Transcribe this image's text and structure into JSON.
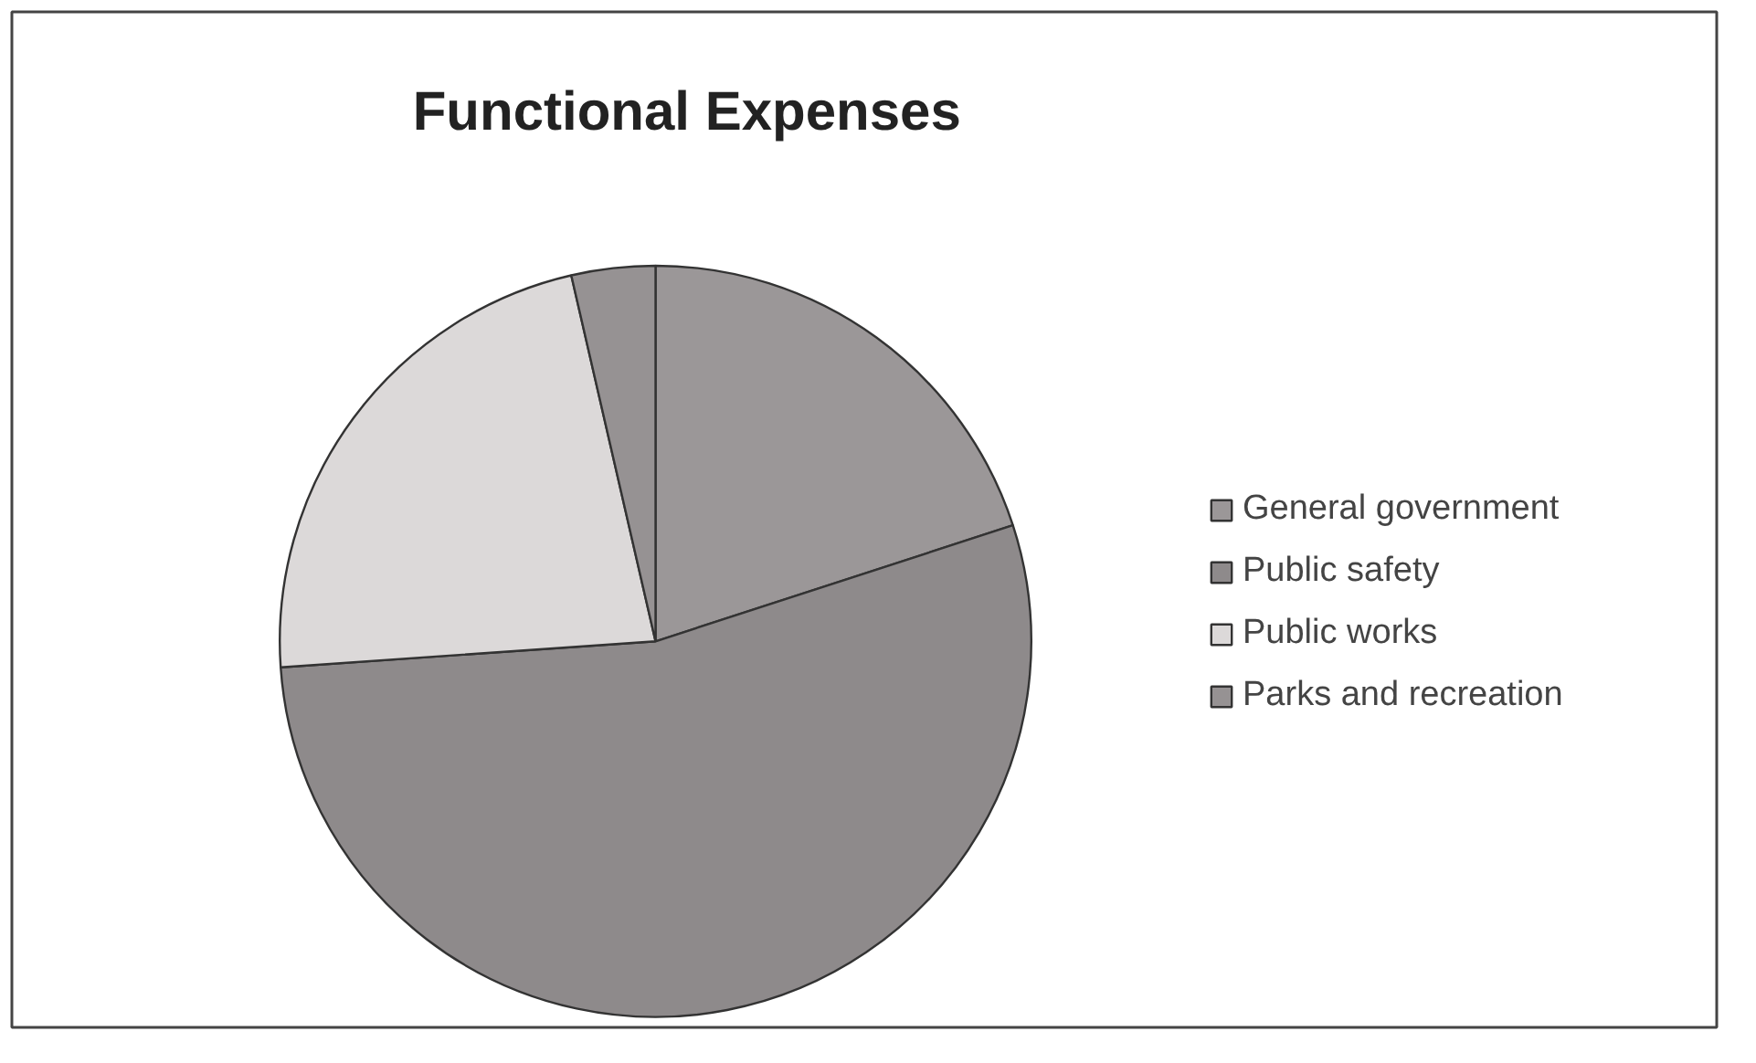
{
  "chart_data": {
    "type": "pie",
    "title": "Functional Expenses",
    "categories": [
      "General government",
      "Public safety",
      "Public works",
      "Parks and recreation"
    ],
    "values": [
      20,
      53.9,
      22.5,
      3.6
    ],
    "colors": [
      "#9b9798",
      "#8e8a8b",
      "#dcd9d9",
      "#969293"
    ],
    "legend": "right"
  }
}
